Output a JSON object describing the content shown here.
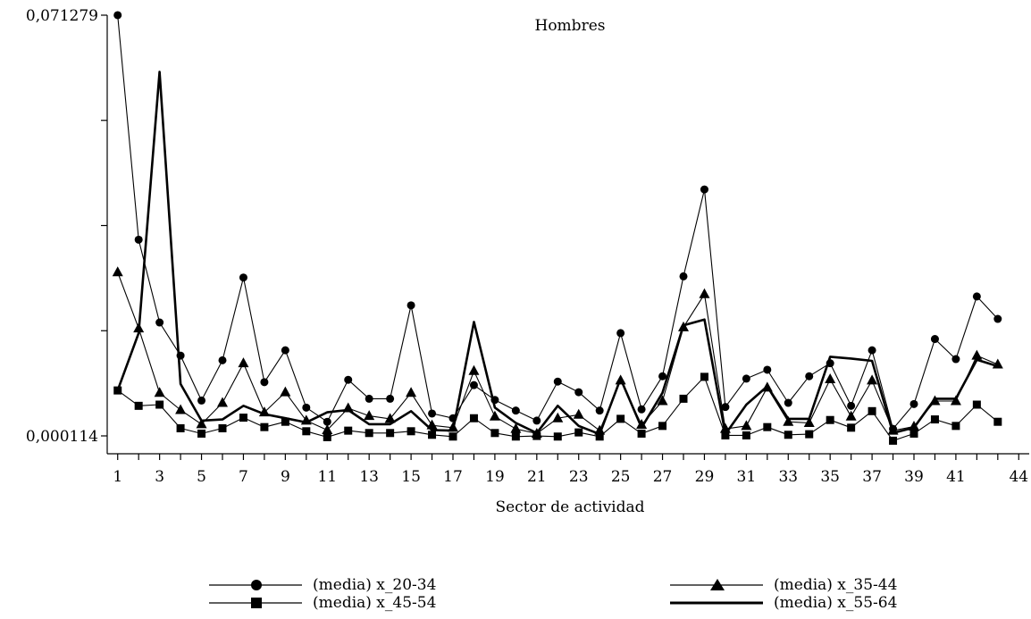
{
  "chart_data": {
    "type": "line",
    "title": "Hombres",
    "xlabel": "Sector de actividad",
    "ylabel": "",
    "y_tick_labels": [
      "0,000114",
      "0,071279"
    ],
    "xlim": [
      0.5,
      44.5
    ],
    "ylim": [
      0.000114,
      0.071279
    ],
    "x_ticks": [
      1,
      3,
      5,
      7,
      9,
      11,
      13,
      15,
      17,
      19,
      21,
      23,
      25,
      27,
      29,
      31,
      33,
      35,
      37,
      39,
      41,
      44
    ],
    "x": [
      1,
      2,
      3,
      4,
      5,
      6,
      7,
      8,
      9,
      10,
      11,
      12,
      13,
      14,
      15,
      16,
      17,
      18,
      19,
      20,
      21,
      22,
      23,
      24,
      25,
      26,
      27,
      28,
      29,
      30,
      31,
      32,
      33,
      34,
      35,
      36,
      37,
      38,
      39,
      40,
      41,
      42,
      43
    ],
    "grid": false,
    "legend_position": "bottom",
    "series": [
      {
        "name": "(media) x_20-34",
        "marker": "circle",
        "line_width": "thin",
        "values": [
          0.07128,
          0.0333,
          0.0193,
          0.0137,
          0.0061,
          0.0129,
          0.0269,
          0.0092,
          0.0146,
          0.0049,
          0.0025,
          0.0096,
          0.0064,
          0.0064,
          0.0222,
          0.0039,
          0.0031,
          0.0087,
          0.0062,
          0.0044,
          0.0027,
          0.0093,
          0.0075,
          0.0044,
          0.0175,
          0.0046,
          0.0102,
          0.0271,
          0.0418,
          0.005,
          0.0098,
          0.0113,
          0.0057,
          0.0102,
          0.0124,
          0.0052,
          0.0146,
          0.0013,
          0.0055,
          0.0165,
          0.0131,
          0.0237,
          0.0199
        ]
      },
      {
        "name": "(media) x_35-44",
        "marker": "triangle",
        "line_width": "thin",
        "values": [
          0.0278,
          0.0183,
          0.0074,
          0.0045,
          0.0021,
          0.0057,
          0.0124,
          0.0041,
          0.0075,
          0.0027,
          0.0011,
          0.0048,
          0.0035,
          0.003,
          0.0074,
          0.0019,
          0.0015,
          0.0111,
          0.0034,
          0.0013,
          0.0005,
          0.0031,
          0.0037,
          0.001,
          0.0095,
          0.002,
          0.006,
          0.0185,
          0.0241,
          0.0013,
          0.0018,
          0.0083,
          0.0025,
          0.0023,
          0.0097,
          0.0034,
          0.0095,
          0.001,
          0.0017,
          0.006,
          0.006,
          0.0137,
          0.0122
        ]
      },
      {
        "name": "(media) x_45-54",
        "marker": "square",
        "line_width": "thin",
        "values": [
          0.0078,
          0.0052,
          0.0054,
          0.0014,
          0.0005,
          0.0014,
          0.0032,
          0.0016,
          0.0025,
          0.0009,
          -0.0001,
          0.001,
          0.0006,
          0.0006,
          0.0009,
          0.0003,
          0.0,
          0.0031,
          0.0006,
          0.0,
          0.0001,
          0.0,
          0.0007,
          0.0,
          0.003,
          0.0005,
          0.0018,
          0.0064,
          0.0101,
          0.0002,
          0.0002,
          0.0016,
          0.0003,
          0.0004,
          0.0028,
          0.0015,
          0.0043,
          -0.0007,
          0.0005,
          0.0029,
          0.0018,
          0.0054,
          0.0025
        ]
      },
      {
        "name": "(media) x_55-64",
        "marker": "none",
        "line_width": "thick",
        "values": [
          0.0078,
          0.0175,
          0.0617,
          0.0089,
          0.0027,
          0.0029,
          0.0052,
          0.0038,
          0.0031,
          0.0024,
          0.0041,
          0.0045,
          0.0021,
          0.0021,
          0.0043,
          0.0011,
          0.001,
          0.0194,
          0.0049,
          0.0023,
          0.0006,
          0.0052,
          0.0018,
          0.0004,
          0.0098,
          0.0015,
          0.0074,
          0.0188,
          0.0198,
          0.0004,
          0.0054,
          0.0085,
          0.003,
          0.003,
          0.0135,
          0.0132,
          0.0128,
          0.0006,
          0.0015,
          0.0064,
          0.0064,
          0.013,
          0.0119
        ]
      }
    ]
  }
}
